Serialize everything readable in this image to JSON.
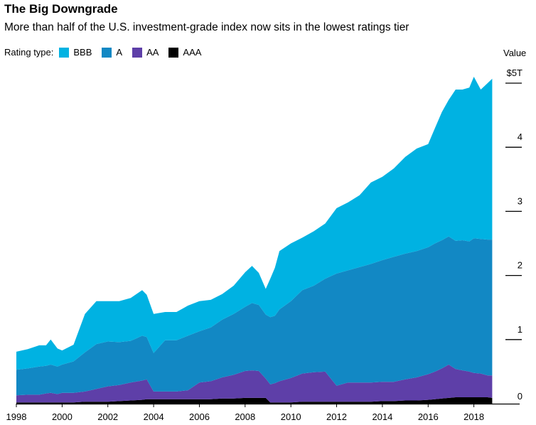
{
  "title": "The Big Downgrade",
  "subtitle": "More than half of the U.S. investment-grade index now sits in the lowest ratings tier",
  "legend_label": "Rating type:",
  "value_label": "Value",
  "chart_data": {
    "type": "area",
    "stacked": true,
    "title": "The Big Downgrade",
    "subtitle": "More than half of the U.S. investment-grade index now sits in the lowest ratings tier",
    "ylabel": "Value",
    "xlim": [
      1998,
      2019.1
    ],
    "ylim": [
      0,
      5
    ],
    "x_ticks": [
      1998,
      2000,
      2002,
      2004,
      2006,
      2008,
      2010,
      2012,
      2014,
      2016,
      2018
    ],
    "x_tick_labels": [
      "1998",
      "2000",
      "2002",
      "2004",
      "2006",
      "2008",
      "2010",
      "2012",
      "2014",
      "2016",
      "2018"
    ],
    "y_ticks": [
      0,
      1,
      2,
      3,
      4,
      5
    ],
    "y_tick_labels": [
      "0",
      "1",
      "2",
      "3",
      "4",
      "$5T"
    ],
    "legend_position": "top-left",
    "x": [
      1998.0,
      1998.5,
      1999.0,
      1999.3,
      1999.5,
      1999.8,
      2000.0,
      2000.5,
      2001.0,
      2001.5,
      2002.0,
      2002.5,
      2003.0,
      2003.5,
      2003.7,
      2004.0,
      2004.5,
      2005.0,
      2005.5,
      2006.0,
      2006.5,
      2007.0,
      2007.5,
      2008.0,
      2008.3,
      2008.6,
      2008.9,
      2009.1,
      2009.3,
      2009.5,
      2010.0,
      2010.5,
      2011.0,
      2011.5,
      2012.0,
      2012.5,
      2013.0,
      2013.5,
      2014.0,
      2014.5,
      2015.0,
      2015.5,
      2016.0,
      2016.3,
      2016.6,
      2016.9,
      2017.2,
      2017.5,
      2017.8,
      2018.0,
      2018.3,
      2018.6,
      2018.8
    ],
    "series": [
      {
        "name": "AAA",
        "color": "#000000",
        "values": [
          0.02,
          0.02,
          0.02,
          0.02,
          0.02,
          0.02,
          0.02,
          0.02,
          0.03,
          0.03,
          0.03,
          0.04,
          0.05,
          0.06,
          0.07,
          0.07,
          0.07,
          0.07,
          0.07,
          0.07,
          0.07,
          0.08,
          0.08,
          0.09,
          0.09,
          0.09,
          0.09,
          0.02,
          0.02,
          0.02,
          0.02,
          0.03,
          0.03,
          0.03,
          0.03,
          0.03,
          0.03,
          0.03,
          0.04,
          0.04,
          0.05,
          0.05,
          0.06,
          0.07,
          0.08,
          0.09,
          0.1,
          0.1,
          0.1,
          0.1,
          0.1,
          0.1,
          0.09
        ]
      },
      {
        "name": "AA",
        "color": "#5e3fa8",
        "values": [
          0.11,
          0.12,
          0.12,
          0.14,
          0.15,
          0.13,
          0.15,
          0.15,
          0.16,
          0.2,
          0.24,
          0.25,
          0.28,
          0.3,
          0.31,
          0.12,
          0.12,
          0.12,
          0.14,
          0.26,
          0.28,
          0.33,
          0.37,
          0.42,
          0.43,
          0.42,
          0.3,
          0.28,
          0.3,
          0.33,
          0.38,
          0.44,
          0.46,
          0.47,
          0.25,
          0.3,
          0.3,
          0.3,
          0.3,
          0.3,
          0.33,
          0.36,
          0.4,
          0.43,
          0.47,
          0.52,
          0.44,
          0.42,
          0.4,
          0.38,
          0.37,
          0.34,
          0.35
        ]
      },
      {
        "name": "A",
        "color": "#1288c4",
        "values": [
          0.4,
          0.41,
          0.44,
          0.43,
          0.44,
          0.43,
          0.44,
          0.49,
          0.61,
          0.7,
          0.7,
          0.67,
          0.65,
          0.7,
          0.66,
          0.6,
          0.8,
          0.8,
          0.85,
          0.8,
          0.84,
          0.9,
          0.95,
          1.0,
          1.05,
          1.03,
          1.0,
          1.05,
          1.05,
          1.12,
          1.2,
          1.3,
          1.35,
          1.45,
          1.75,
          1.75,
          1.8,
          1.85,
          1.9,
          1.95,
          1.96,
          1.97,
          1.98,
          2.0,
          2.0,
          2.0,
          2.0,
          2.03,
          2.03,
          2.1,
          2.1,
          2.12,
          2.12
        ]
      },
      {
        "name": "BBB",
        "color": "#00b2e2",
        "values": [
          0.28,
          0.3,
          0.33,
          0.32,
          0.39,
          0.28,
          0.22,
          0.26,
          0.6,
          0.67,
          0.63,
          0.64,
          0.67,
          0.71,
          0.66,
          0.61,
          0.44,
          0.44,
          0.47,
          0.47,
          0.43,
          0.4,
          0.44,
          0.54,
          0.58,
          0.5,
          0.4,
          0.6,
          0.75,
          0.91,
          0.9,
          0.82,
          0.85,
          0.86,
          1.02,
          1.06,
          1.12,
          1.27,
          1.3,
          1.38,
          1.51,
          1.6,
          1.61,
          1.8,
          2.0,
          2.13,
          2.36,
          2.35,
          2.4,
          2.52,
          2.33,
          2.44,
          2.51
        ]
      }
    ]
  }
}
